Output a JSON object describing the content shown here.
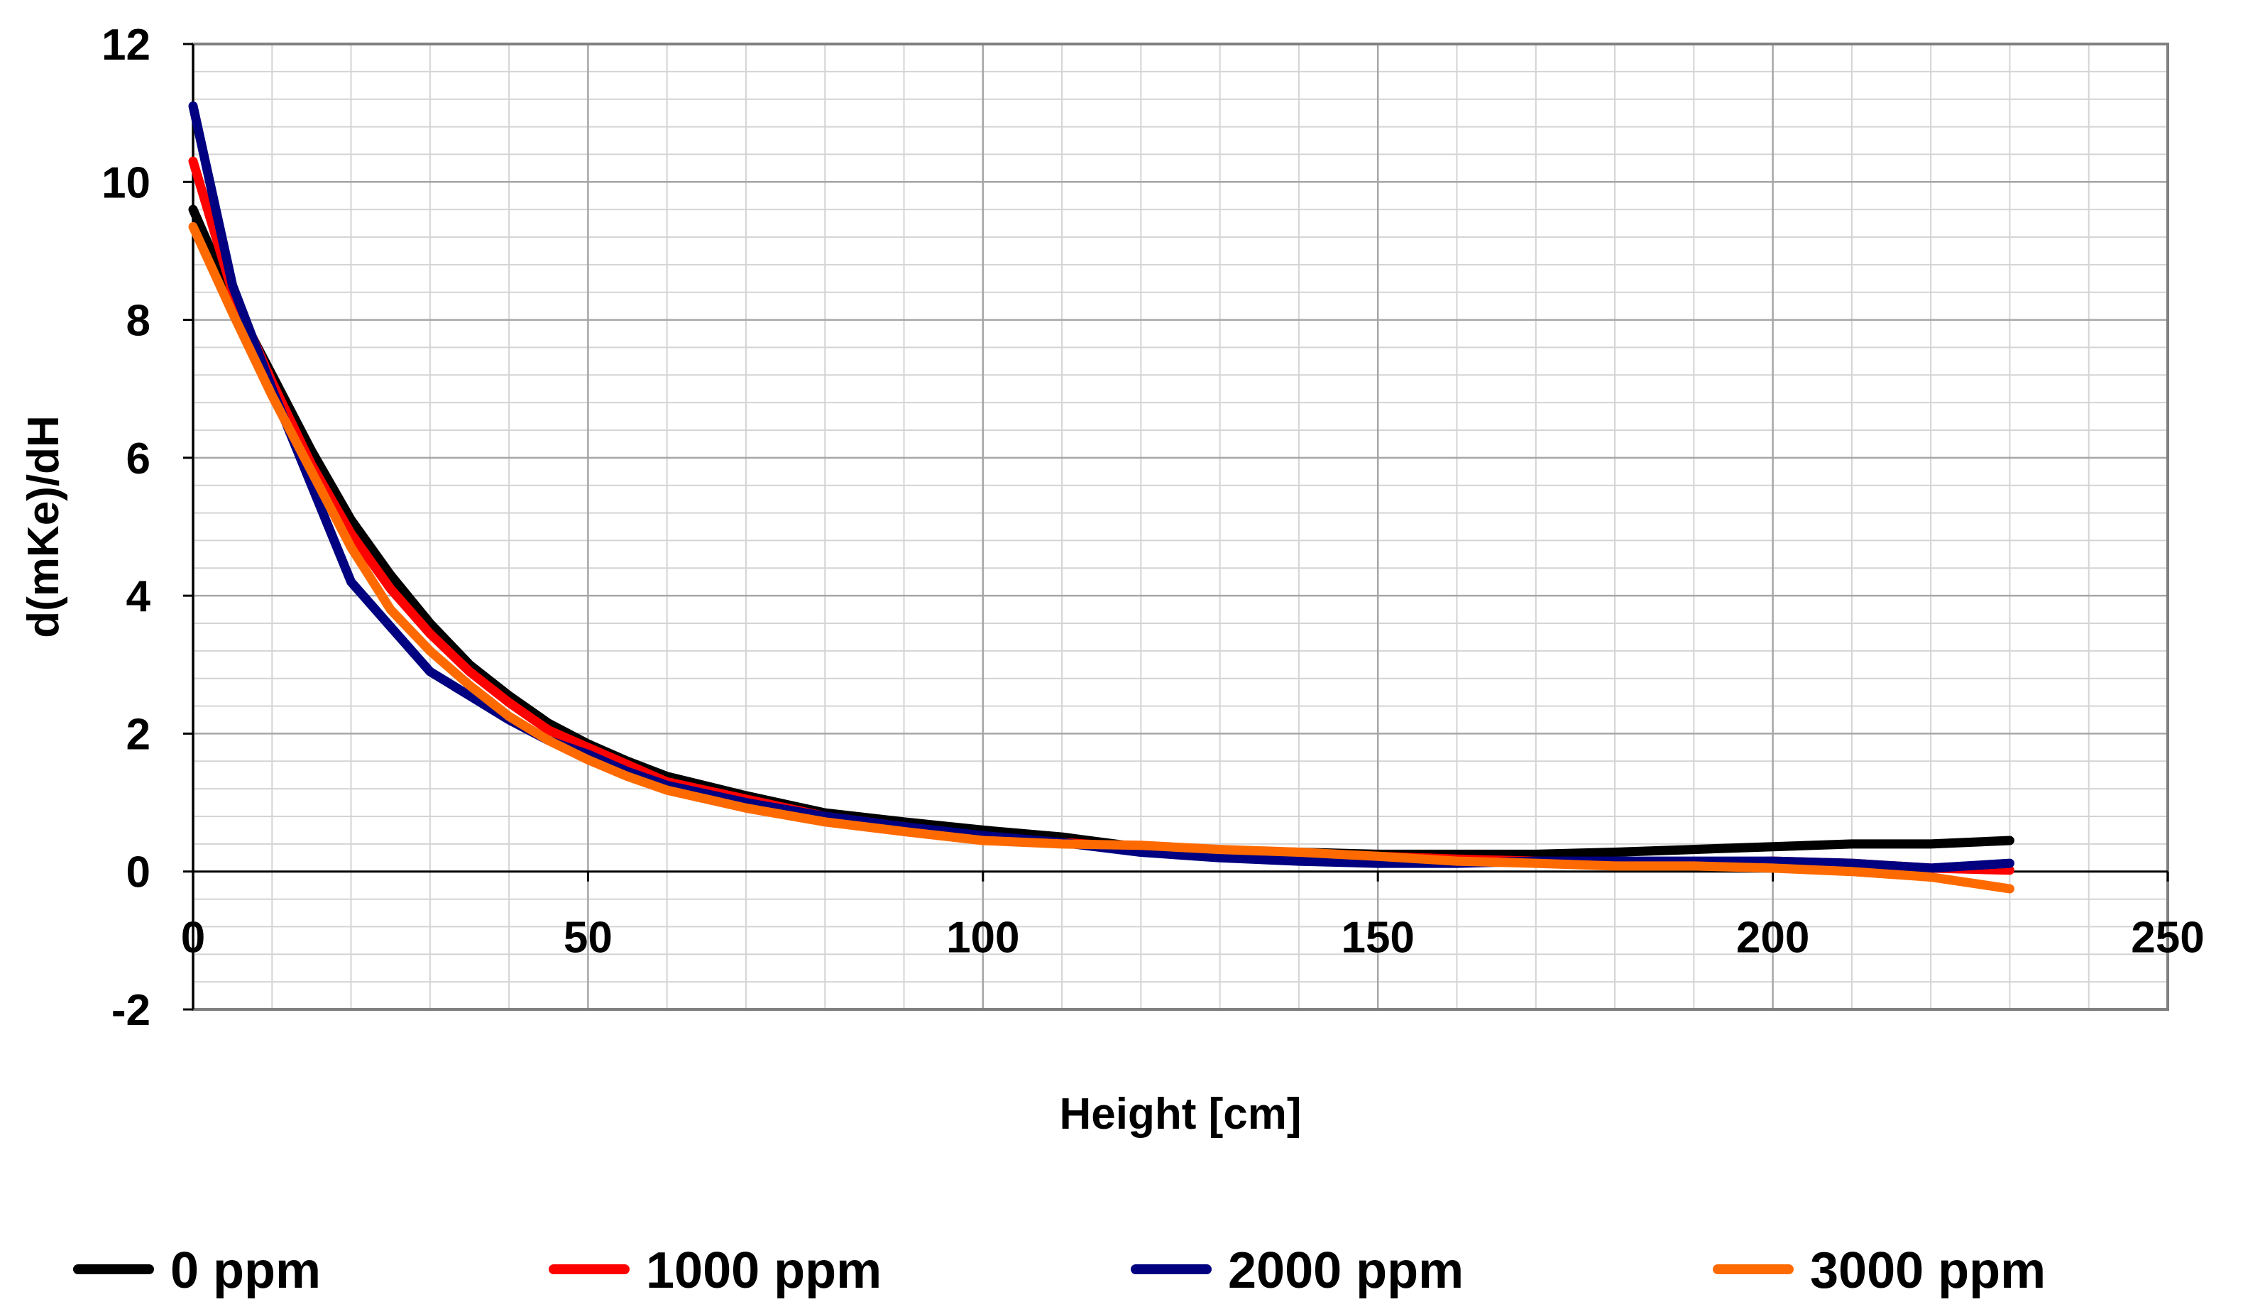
{
  "chart_data": {
    "type": "line",
    "xlabel": "Height [cm]",
    "ylabel": "d(mKe)/dH",
    "xlim": [
      0,
      250
    ],
    "ylim": [
      -2,
      12
    ],
    "x_major_ticks": [
      0,
      50,
      100,
      150,
      200,
      250
    ],
    "y_major_ticks": [
      -2,
      0,
      2,
      4,
      6,
      8,
      10,
      12
    ],
    "x_tick_labels": [
      "0",
      "50",
      "100",
      "150",
      "200",
      "250"
    ],
    "y_tick_labels": [
      "-2",
      "0",
      "2",
      "4",
      "6",
      "8",
      "10",
      "12"
    ],
    "x_minor_step": 10,
    "y_minor_step": 0.4,
    "grid": true,
    "legend_position": "bottom",
    "series": [
      {
        "name": "0 ppm",
        "color": "#000000",
        "x": [
          0,
          5,
          10,
          15,
          20,
          25,
          30,
          35,
          40,
          45,
          50,
          55,
          60,
          70,
          80,
          90,
          100,
          110,
          120,
          130,
          140,
          150,
          160,
          170,
          180,
          190,
          200,
          210,
          220,
          230
        ],
        "y": [
          9.6,
          8.3,
          7.2,
          6.1,
          5.1,
          4.3,
          3.6,
          3.0,
          2.55,
          2.15,
          1.85,
          1.6,
          1.38,
          1.1,
          0.85,
          0.72,
          0.6,
          0.5,
          0.35,
          0.3,
          0.28,
          0.25,
          0.25,
          0.25,
          0.28,
          0.32,
          0.36,
          0.4,
          0.4,
          0.45
        ]
      },
      {
        "name": "1000 ppm",
        "color": "#ff0000",
        "x": [
          0,
          5,
          10,
          15,
          20,
          25,
          30,
          35,
          40,
          45,
          50,
          55,
          60,
          70,
          80,
          90,
          100,
          110,
          120,
          130,
          140,
          150,
          160,
          170,
          180,
          190,
          200,
          210,
          220,
          230
        ],
        "y": [
          10.3,
          8.4,
          7.1,
          5.9,
          4.9,
          4.1,
          3.45,
          2.9,
          2.45,
          2.05,
          1.8,
          1.55,
          1.3,
          1.05,
          0.8,
          0.65,
          0.5,
          0.42,
          0.35,
          0.3,
          0.25,
          0.22,
          0.18,
          0.15,
          0.12,
          0.12,
          0.15,
          0.12,
          0.05,
          0.02
        ]
      },
      {
        "name": "2000 ppm",
        "color": "#000080",
        "x": [
          0,
          5,
          10,
          15,
          20,
          25,
          30,
          35,
          40,
          45,
          50,
          55,
          60,
          70,
          80,
          90,
          100,
          110,
          120,
          130,
          140,
          150,
          160,
          170,
          180,
          190,
          200,
          210,
          220,
          230
        ],
        "y": [
          11.1,
          8.5,
          7.0,
          5.6,
          4.2,
          3.55,
          2.9,
          2.55,
          2.2,
          1.9,
          1.7,
          1.45,
          1.25,
          1.0,
          0.8,
          0.65,
          0.52,
          0.42,
          0.28,
          0.2,
          0.15,
          0.12,
          0.12,
          0.15,
          0.15,
          0.15,
          0.15,
          0.12,
          0.05,
          0.12
        ]
      },
      {
        "name": "3000 ppm",
        "color": "#ff6a00",
        "x": [
          0,
          5,
          10,
          15,
          20,
          25,
          30,
          35,
          40,
          45,
          50,
          55,
          60,
          70,
          80,
          90,
          100,
          110,
          120,
          130,
          140,
          150,
          160,
          170,
          180,
          190,
          200,
          210,
          220,
          230
        ],
        "y": [
          9.35,
          8.1,
          6.9,
          5.8,
          4.7,
          3.8,
          3.2,
          2.7,
          2.25,
          1.9,
          1.62,
          1.38,
          1.18,
          0.92,
          0.72,
          0.58,
          0.45,
          0.4,
          0.38,
          0.32,
          0.28,
          0.22,
          0.15,
          0.12,
          0.08,
          0.08,
          0.05,
          0.0,
          -0.08,
          -0.25
        ]
      }
    ]
  }
}
